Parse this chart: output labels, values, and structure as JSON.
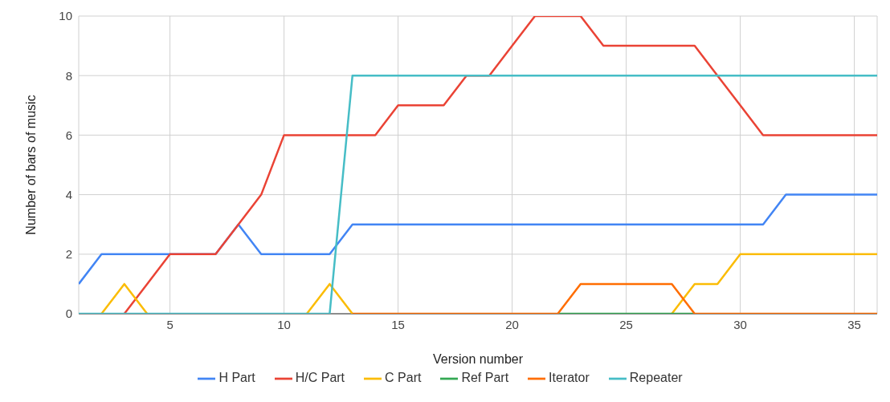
{
  "chart_data": {
    "type": "line",
    "xlabel": "Version number",
    "ylabel": "Number of bars of music",
    "x": [
      1,
      2,
      3,
      4,
      5,
      6,
      7,
      8,
      9,
      10,
      11,
      12,
      13,
      14,
      15,
      16,
      17,
      18,
      19,
      20,
      21,
      22,
      23,
      24,
      25,
      26,
      27,
      28,
      29,
      30,
      31,
      32,
      33,
      34,
      35,
      36
    ],
    "series": [
      {
        "name": "H Part",
        "color": "#4285f4",
        "values": [
          1,
          2,
          2,
          2,
          2,
          2,
          2,
          3,
          2,
          2,
          2,
          2,
          3,
          3,
          3,
          3,
          3,
          3,
          3,
          3,
          3,
          3,
          3,
          3,
          3,
          3,
          3,
          3,
          3,
          3,
          3,
          4,
          4,
          4,
          4,
          4
        ]
      },
      {
        "name": "H/C Part",
        "color": "#ea4335",
        "values": [
          null,
          null,
          0,
          1,
          2,
          2,
          2,
          3,
          4,
          6,
          6,
          6,
          6,
          6,
          7,
          7,
          7,
          8,
          8,
          9,
          10,
          10,
          10,
          9,
          9,
          9,
          9,
          9,
          8,
          7,
          6,
          6,
          6,
          6,
          6,
          6
        ]
      },
      {
        "name": "C Part",
        "color": "#fbbc04",
        "values": [
          null,
          0,
          1,
          0,
          null,
          null,
          null,
          null,
          null,
          null,
          0,
          1,
          0,
          null,
          null,
          null,
          null,
          null,
          null,
          null,
          null,
          null,
          null,
          null,
          null,
          null,
          0,
          1,
          1,
          2,
          2,
          2,
          2,
          2,
          2,
          2
        ]
      },
      {
        "name": "Ref Part",
        "color": "#34a853",
        "values": [
          null,
          null,
          null,
          null,
          null,
          null,
          null,
          null,
          null,
          null,
          null,
          null,
          null,
          null,
          null,
          null,
          null,
          null,
          null,
          null,
          null,
          0,
          0,
          0,
          0,
          0,
          0,
          0,
          null,
          null,
          null,
          null,
          null,
          null,
          null,
          null
        ]
      },
      {
        "name": "Iterator",
        "color": "#ff6d01",
        "values": [
          null,
          null,
          null,
          null,
          null,
          null,
          null,
          null,
          null,
          null,
          null,
          null,
          0,
          0,
          0,
          0,
          0,
          0,
          0,
          0,
          0,
          0,
          1,
          1,
          1,
          1,
          1,
          0,
          0,
          0,
          0,
          0,
          0,
          0,
          0,
          0
        ]
      },
      {
        "name": "Repeater",
        "color": "#46bdc6",
        "values": [
          0,
          0,
          0,
          0,
          0,
          0,
          0,
          0,
          0,
          0,
          0,
          0,
          8,
          8,
          8,
          8,
          8,
          8,
          8,
          8,
          8,
          8,
          8,
          8,
          8,
          8,
          8,
          8,
          8,
          8,
          8,
          8,
          8,
          8,
          8,
          8
        ]
      }
    ],
    "xlim": [
      1,
      36
    ],
    "xticks": [
      5,
      10,
      15,
      20,
      25,
      30,
      35
    ],
    "ylim": [
      0,
      10
    ],
    "yticks": [
      0,
      2,
      4,
      6,
      8,
      10
    ],
    "grid": true,
    "legend": "bottom",
    "marker": "none",
    "line_style": "solid"
  }
}
